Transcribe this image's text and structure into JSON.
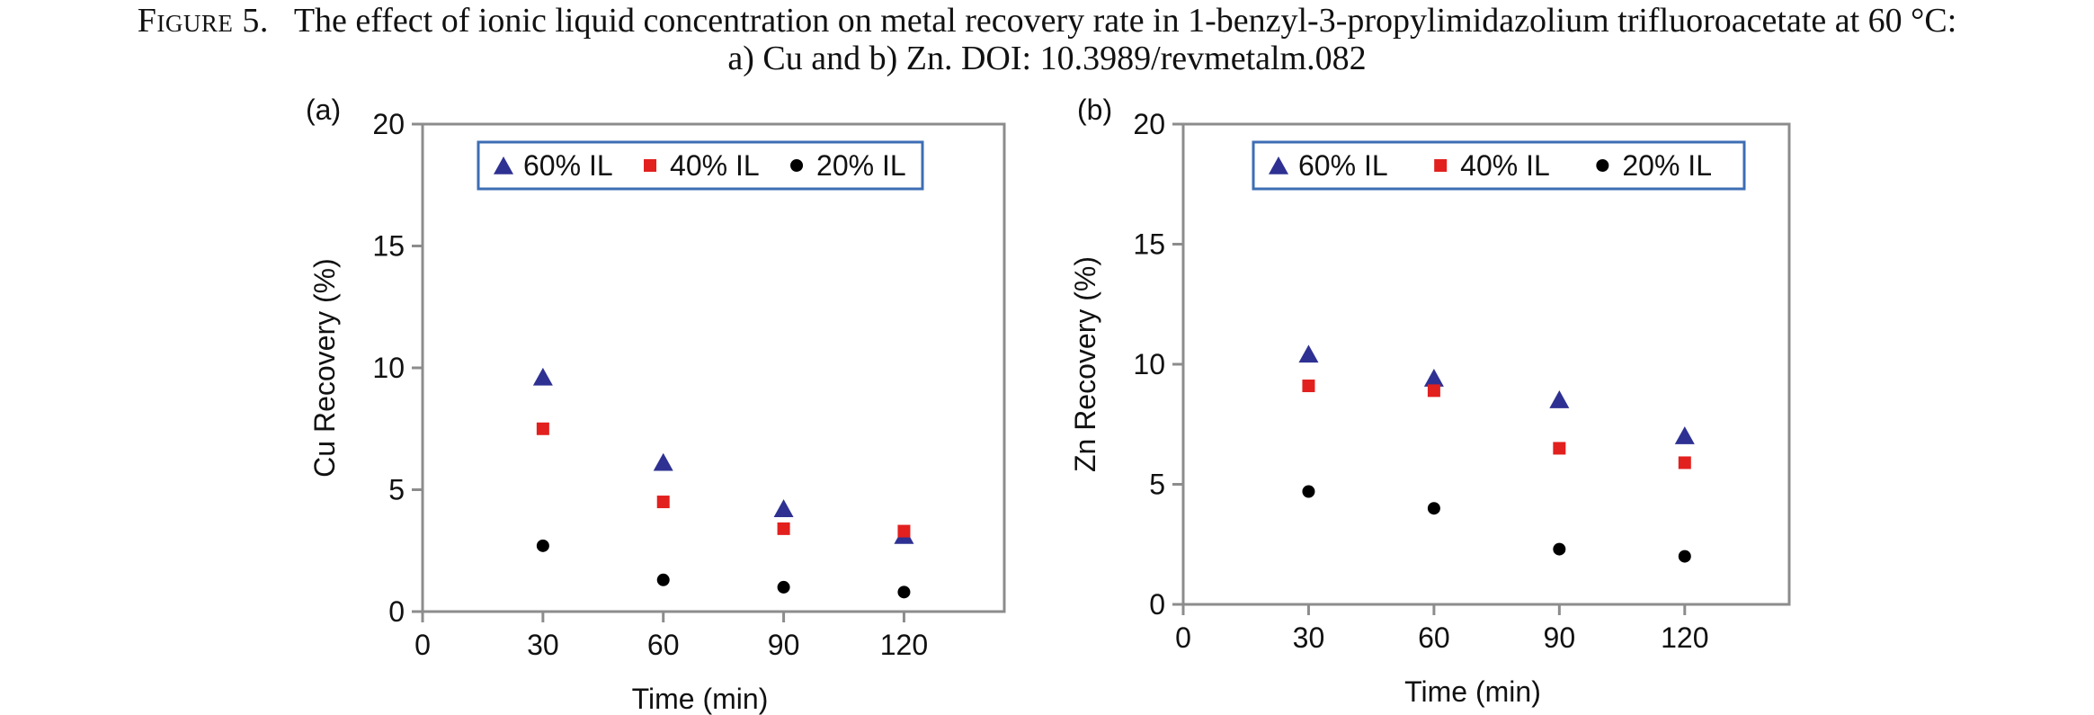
{
  "caption": {
    "label": "Figure 5.",
    "line1": "The effect of ionic liquid concentration on metal recovery rate in 1-benzyl-3-propylimidazolium trifluoroacetate at 60 °C:",
    "line2": "a) Cu and b) Zn. DOI: 10.3989/revmetalm.082"
  },
  "chart_data": [
    {
      "type": "scatter",
      "panel_label": "(a)",
      "xlabel": "Time (min)",
      "ylabel": "Cu  Recovery (%)",
      "xlim": [
        0,
        145
      ],
      "ylim": [
        0,
        20
      ],
      "xticks": [
        0,
        30,
        60,
        90,
        120
      ],
      "yticks": [
        0,
        5,
        10,
        15,
        20
      ],
      "grid": false,
      "legend_position": "top",
      "x": [
        30,
        60,
        90,
        120
      ],
      "series": [
        {
          "name": "60% IL",
          "marker": "triangle",
          "color": "#2e3192",
          "values": [
            9.6,
            6.1,
            4.2,
            3.1
          ]
        },
        {
          "name": "40% IL",
          "marker": "square",
          "color": "#e2201e",
          "values": [
            7.5,
            4.5,
            3.4,
            3.3
          ]
        },
        {
          "name": "20% IL",
          "marker": "circle",
          "color": "#000000",
          "values": [
            2.7,
            1.3,
            1.0,
            0.8
          ]
        }
      ]
    },
    {
      "type": "scatter",
      "panel_label": "(b)",
      "xlabel": "Time (min)",
      "ylabel": "Zn Recovery (%)",
      "xlim": [
        0,
        145
      ],
      "ylim": [
        0,
        20
      ],
      "xticks": [
        0,
        30,
        60,
        90,
        120
      ],
      "yticks": [
        0,
        5,
        10,
        15,
        20
      ],
      "grid": false,
      "legend_position": "top",
      "x": [
        30,
        60,
        90,
        120
      ],
      "series": [
        {
          "name": "60% IL",
          "marker": "triangle",
          "color": "#2e3192",
          "values": [
            10.4,
            9.4,
            8.5,
            7.0
          ]
        },
        {
          "name": "40% IL",
          "marker": "square",
          "color": "#e2201e",
          "values": [
            9.1,
            8.9,
            6.5,
            5.9
          ]
        },
        {
          "name": "20% IL",
          "marker": "circle",
          "color": "#000000",
          "values": [
            4.7,
            4.0,
            2.3,
            2.0
          ]
        }
      ]
    }
  ],
  "style": {
    "axis_color": "#8c8c8c",
    "legend_border_color": "#3d6eb4"
  }
}
